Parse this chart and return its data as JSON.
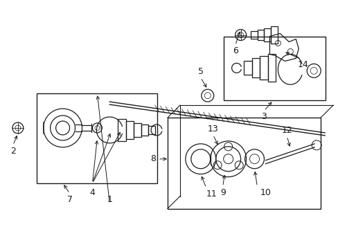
{
  "bg_color": "#ffffff",
  "line_color": "#1a1a1a",
  "fig_width": 4.89,
  "fig_height": 3.6,
  "dpi": 100,
  "label_fontsize": 9
}
